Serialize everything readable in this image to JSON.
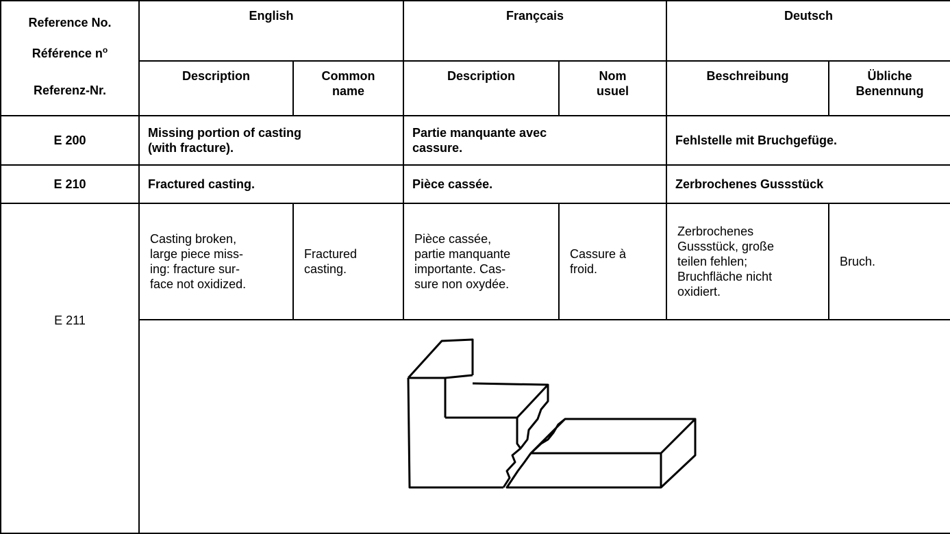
{
  "header": {
    "reference": [
      "Reference No.",
      {
        "text": "Référence n",
        "sup": "o"
      },
      "Referenz-Nr."
    ],
    "languages": [
      "English",
      "Françcais",
      "Deutsch"
    ],
    "subcolumns": [
      [
        "Description"
      ],
      [
        "Common",
        "name"
      ],
      [
        "Description"
      ],
      [
        "Nom",
        "usuel"
      ],
      [
        "Beschreibung"
      ],
      [
        "Übliche",
        "Benennung"
      ]
    ]
  },
  "rows": [
    {
      "ref": "E 200",
      "en": [
        "Missing portion of casting",
        "(with fracture)."
      ],
      "fr": [
        "Partie manquante avec",
        "cassure."
      ],
      "de": [
        "Fehlstelle mit Bruchgefüge."
      ]
    },
    {
      "ref": "E 210",
      "en": [
        "Fractured casting."
      ],
      "fr": [
        "Pièce cassée."
      ],
      "de": [
        "Zerbrochenes Gussstück"
      ]
    },
    {
      "ref": "E 211",
      "cells": [
        [
          "Casting broken,",
          "large piece miss-",
          "ing: fracture sur-",
          "face not oxidized."
        ],
        [
          "Fractured",
          "casting."
        ],
        [
          "Pièce cassée,",
          "partie manquante",
          "importante. Cas-",
          "sure non oxydée."
        ],
        [
          "Cassure à",
          "froid."
        ],
        [
          "Zerbrochenes",
          "Gussstück, große",
          "teilen fehlen;",
          "Bruchfläche nicht",
          "oxidiert."
        ],
        [
          "Bruch."
        ]
      ]
    }
  ]
}
